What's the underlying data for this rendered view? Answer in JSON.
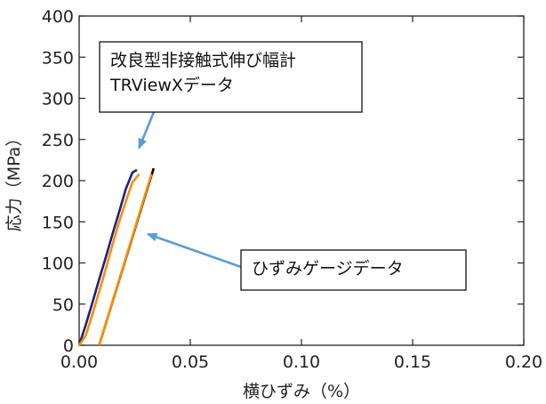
{
  "chart_data": {
    "type": "line",
    "title": "",
    "xlabel": "横ひずみ（%）",
    "ylabel": "応力（MPa）",
    "xlim": [
      0.0,
      0.2
    ],
    "ylim": [
      0,
      400
    ],
    "grid": false,
    "x_ticks": [
      "0.00",
      "0.05",
      "0.10",
      "0.15",
      "0.20"
    ],
    "y_ticks": [
      "0",
      "50",
      "100",
      "150",
      "200",
      "250",
      "300",
      "350",
      "400"
    ],
    "series": [
      {
        "color": "#1a237e",
        "x": [
          0.0,
          0.003,
          0.006,
          0.009,
          0.012,
          0.015,
          0.018,
          0.021,
          0.024,
          0.026
        ],
        "y": [
          0,
          25,
          52,
          80,
          107,
          135,
          162,
          190,
          210,
          213
        ]
      },
      {
        "color": "#ff8c00",
        "x": [
          0.0,
          0.003,
          0.006,
          0.009,
          0.012,
          0.015,
          0.018,
          0.021,
          0.024,
          0.027
        ],
        "y": [
          0,
          12,
          38,
          65,
          93,
          122,
          150,
          175,
          198,
          208
        ]
      },
      {
        "color": "#000000",
        "x": [
          0.009,
          0.0335
        ],
        "y": [
          0,
          215
        ]
      },
      {
        "color": "#ff8c00",
        "x": [
          0.009,
          0.0325
        ],
        "y": [
          0,
          208
        ]
      }
    ],
    "annotations": [
      {
        "lines": [
          "改良型非接触式伸び幅計",
          "TRViewXデータ"
        ],
        "arrow_to": [
          0.027,
          240
        ]
      },
      {
        "lines": [
          "ひずみゲージデータ"
        ],
        "arrow_to": [
          0.031,
          135
        ]
      }
    ],
    "arrow_color": "#5b9bd5"
  }
}
